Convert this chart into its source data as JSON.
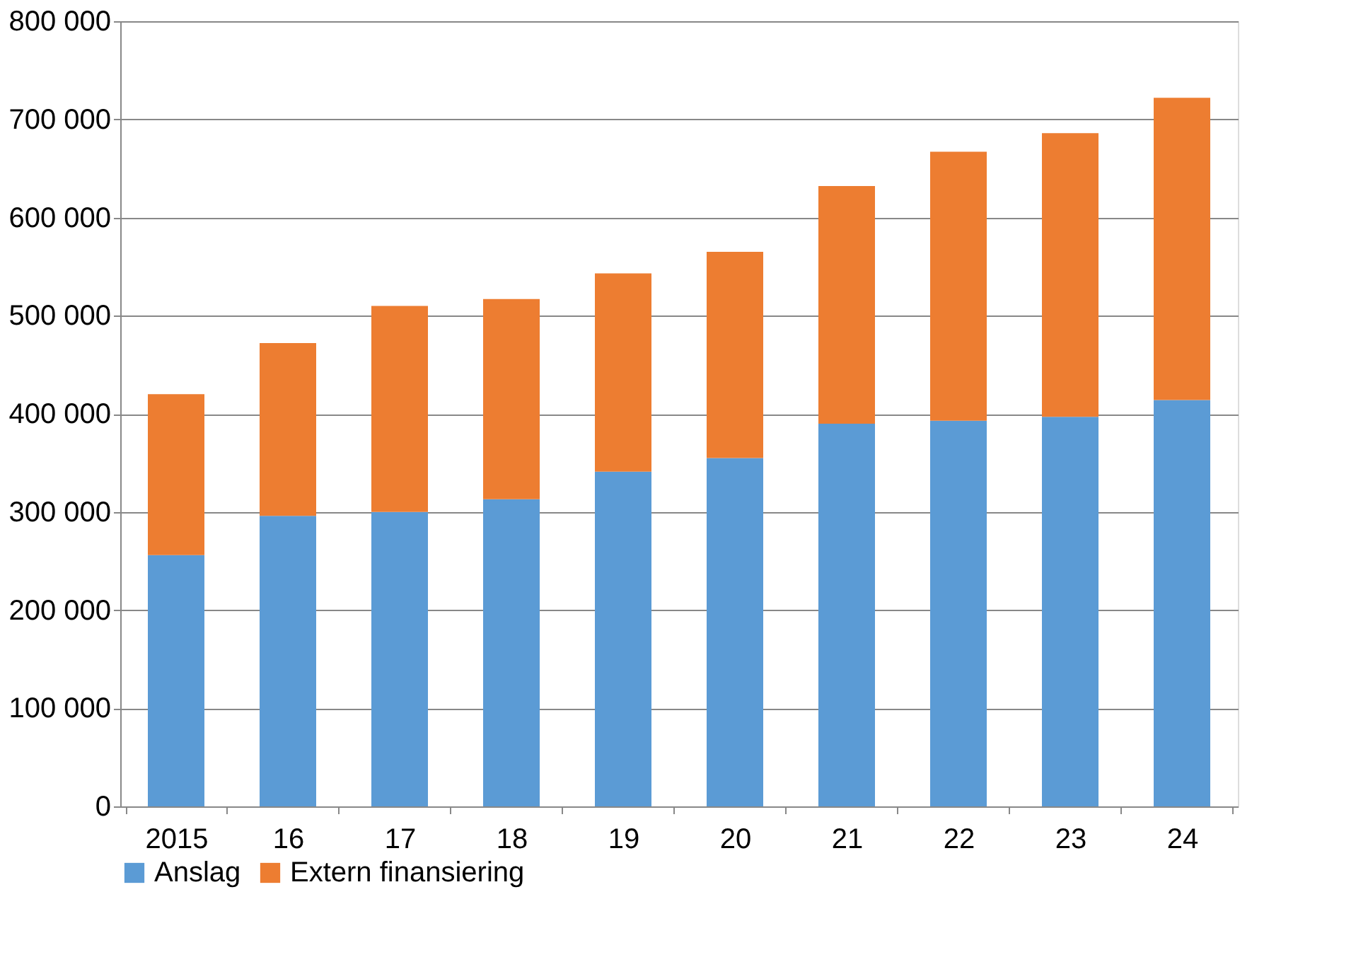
{
  "chart_data": {
    "type": "bar",
    "stacked": true,
    "categories": [
      "2015",
      "16",
      "17",
      "18",
      "19",
      "20",
      "21",
      "22",
      "23",
      "24"
    ],
    "series": [
      {
        "name": "Anslag",
        "color": "#5b9bd5",
        "values": [
          256000,
          296000,
          300000,
          313000,
          341000,
          355000,
          390000,
          393000,
          397000,
          414000
        ]
      },
      {
        "name": "Extern finansiering",
        "color": "#ed7d31",
        "values": [
          164000,
          176000,
          210000,
          204000,
          202000,
          210000,
          242000,
          274000,
          289000,
          308000
        ]
      }
    ],
    "ylim": [
      0,
      800000
    ],
    "yticks": [
      {
        "value": 0,
        "label": "0"
      },
      {
        "value": 100000,
        "label": "100 000"
      },
      {
        "value": 200000,
        "label": "200 000"
      },
      {
        "value": 300000,
        "label": "300 000"
      },
      {
        "value": 400000,
        "label": "400 000"
      },
      {
        "value": 500000,
        "label": "500 000"
      },
      {
        "value": 600000,
        "label": "600 000"
      },
      {
        "value": 700000,
        "label": "700 000"
      },
      {
        "value": 800000,
        "label": "800 000"
      }
    ],
    "grid": "y",
    "legend": "bottom"
  }
}
